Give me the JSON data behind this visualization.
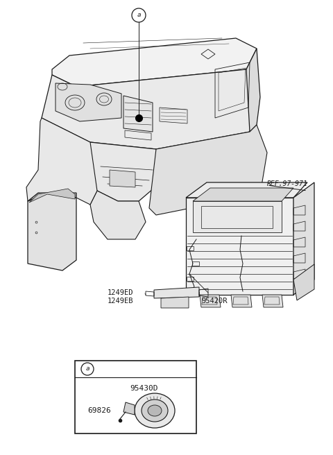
{
  "bg_color": "#ffffff",
  "line_color": "#1a1a1a",
  "fig_width": 4.8,
  "fig_height": 6.56,
  "dpi": 100,
  "labels": {
    "ref": "REF.97-971",
    "label1": "1249ED",
    "label2": "1249EB",
    "label3": "95420R",
    "label4": "95430D",
    "label5": "69826"
  }
}
